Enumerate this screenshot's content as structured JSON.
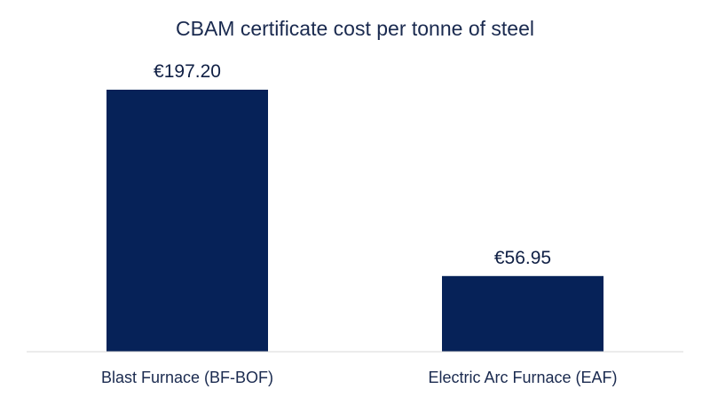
{
  "chart_data": {
    "type": "bar",
    "title": "CBAM certificate cost per tonne of steel",
    "xlabel": "",
    "ylabel": "",
    "categories": [
      "Blast Furnace (BF-BOF)",
      "Electric Arc Furnace (EAF)"
    ],
    "values": [
      197.2,
      56.95
    ],
    "value_labels": [
      "€197.20",
      "€56.95"
    ],
    "ylim": [
      0,
      197.2
    ],
    "grid": false,
    "legend": "none",
    "colors": {
      "bar": "#062258",
      "axis": "#d9d9d9",
      "text": "#1a2a4f"
    }
  }
}
